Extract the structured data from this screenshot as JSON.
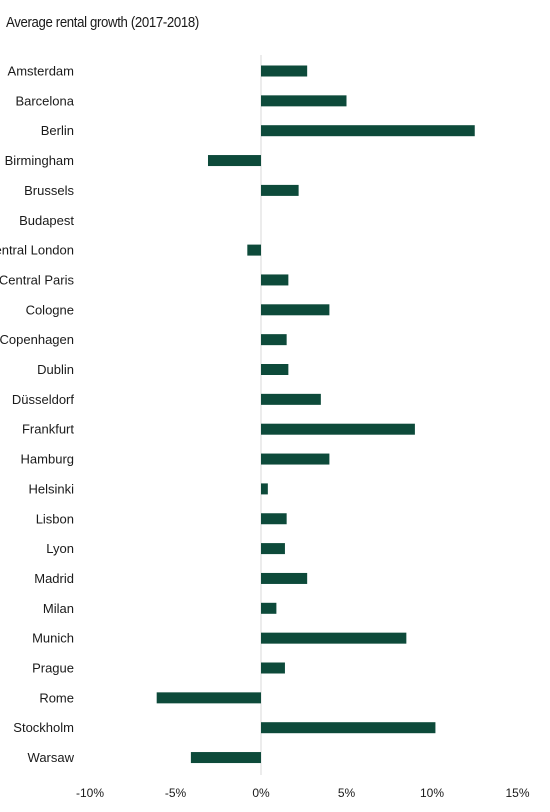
{
  "chart_data": {
    "type": "bar",
    "orientation": "horizontal",
    "title": "Average rental growth (2017-2018)",
    "xlabel": "",
    "ylabel": "",
    "categories": [
      "Amsterdam",
      "Barcelona",
      "Berlin",
      "Birmingham",
      "Brussels",
      "Budapest",
      "Central London",
      "Central Paris",
      "Cologne",
      "Copenhagen",
      "Dublin",
      "Düsseldorf",
      "Frankfurt",
      "Hamburg",
      "Helsinki",
      "Lisbon",
      "Lyon",
      "Madrid",
      "Milan",
      "Munich",
      "Prague",
      "Rome",
      "Stockholm",
      "Warsaw"
    ],
    "values": [
      2.7,
      5.0,
      12.5,
      -3.1,
      2.2,
      0,
      -0.8,
      1.6,
      4.0,
      1.5,
      1.6,
      3.5,
      9.0,
      4.0,
      0.4,
      1.5,
      1.4,
      2.7,
      0.9,
      8.5,
      1.4,
      -6.1,
      10.2,
      -4.1
    ],
    "xlim": [
      -10,
      15
    ],
    "xticks": [
      -10,
      -5,
      0,
      5,
      10,
      15
    ],
    "xtick_labels": [
      "-10%",
      "-5%",
      "0%",
      "5%",
      "10%",
      "15%"
    ],
    "grid": false,
    "legend": "none",
    "bar_color": "#0d4a3a",
    "zero_line_color": "#d9d9d9"
  }
}
